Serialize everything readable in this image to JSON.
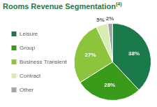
{
  "chart_data": {
    "type": "pie",
    "title": "Rooms Revenue Segmentation",
    "annotations": [
      "(4)"
    ],
    "categories": [
      "Leisure",
      "Group",
      "Business Transient",
      "Contract",
      "Other"
    ],
    "values": [
      38,
      28,
      27,
      5,
      2
    ],
    "value_labels": [
      "38%",
      "28%",
      "27%",
      "5%",
      "2%"
    ],
    "colors": [
      "#1a7a4a",
      "#3a9a1a",
      "#8cc43c",
      "#d8edb4",
      "#a6a6a6"
    ],
    "legend": "left",
    "data_labels": true
  }
}
